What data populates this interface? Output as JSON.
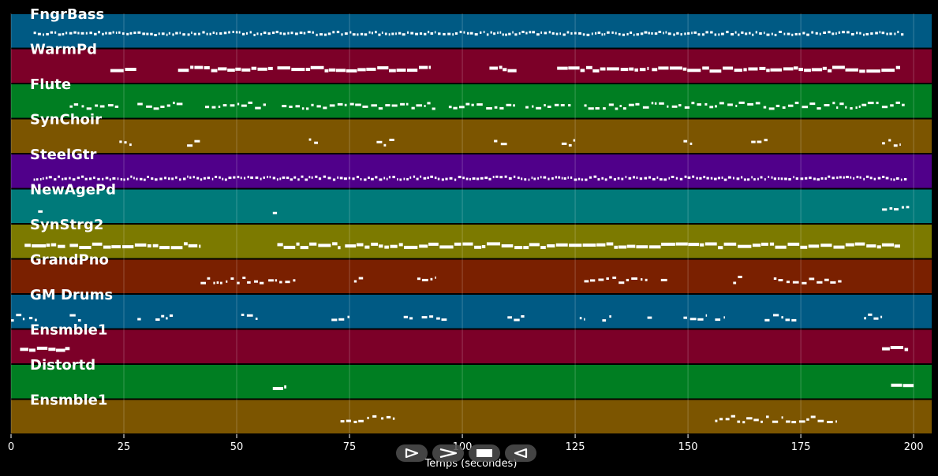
{
  "chart_data": {
    "type": "piano-roll",
    "xlabel": "Temps (secondes)",
    "xlim": [
      0,
      204
    ],
    "xticks": [
      0,
      25,
      50,
      75,
      100,
      125,
      150,
      175,
      200
    ],
    "grid": true,
    "tracks": [
      {
        "name": "FngrBass",
        "color": "#005a84",
        "density": "dense",
        "segments": [
          [
            5,
            198
          ]
        ],
        "pitch": 0.35
      },
      {
        "name": "WarmPd",
        "color": "#7c0028",
        "density": "block",
        "segments": [
          [
            22,
            28
          ],
          [
            37,
            58
          ],
          [
            59,
            93
          ],
          [
            106,
            112
          ],
          [
            121,
            141
          ],
          [
            142,
            197
          ]
        ],
        "pitch": 0.4
      },
      {
        "name": "Flute",
        "color": "#007e22",
        "density": "sparse",
        "segments": [
          [
            13,
            24
          ],
          [
            28,
            38
          ],
          [
            43,
            57
          ],
          [
            60,
            94
          ],
          [
            97,
            112
          ],
          [
            114,
            124
          ],
          [
            127,
            198
          ]
        ],
        "pitch": 0.45
      },
      {
        "name": "SynChoir",
        "color": "#7c5500",
        "density": "sparse",
        "segments": [
          [
            24,
            27
          ],
          [
            39,
            42
          ],
          [
            66,
            68
          ],
          [
            81,
            85
          ],
          [
            107,
            110
          ],
          [
            122,
            125
          ],
          [
            149,
            151
          ],
          [
            164,
            168
          ],
          [
            193,
            197
          ]
        ],
        "pitch": 0.52
      },
      {
        "name": "SteelGtr",
        "color": "#50008a",
        "density": "dense",
        "segments": [
          [
            5,
            198
          ]
        ],
        "pitch": 0.55
      },
      {
        "name": "NewAgePd",
        "color": "#007a7a",
        "density": "sparse",
        "segments": [
          [
            6,
            7
          ],
          [
            58,
            59
          ],
          [
            193,
            199
          ]
        ],
        "pitch": 0.4
      },
      {
        "name": "SynStrg2",
        "color": "#7c7a00",
        "density": "block",
        "segments": [
          [
            3,
            12
          ],
          [
            13,
            42
          ],
          [
            59,
            73
          ],
          [
            74,
            197
          ]
        ],
        "pitch": 0.45
      },
      {
        "name": "GrandPno",
        "color": "#7a2000",
        "density": "sparse",
        "segments": [
          [
            42,
            56
          ],
          [
            57,
            63
          ],
          [
            76,
            78
          ],
          [
            90,
            94
          ],
          [
            127,
            141
          ],
          [
            144,
            146
          ],
          [
            160,
            162
          ],
          [
            169,
            184
          ]
        ],
        "pitch": 0.4
      },
      {
        "name": "GM Drums",
        "color": "#005a84",
        "density": "sparse",
        "segments": [
          [
            0,
            3
          ],
          [
            4,
            6
          ],
          [
            13,
            16
          ],
          [
            28,
            29
          ],
          [
            32,
            36
          ],
          [
            51,
            55
          ],
          [
            71,
            75
          ],
          [
            87,
            89
          ],
          [
            91,
            97
          ],
          [
            110,
            114
          ],
          [
            126,
            127
          ],
          [
            131,
            133
          ],
          [
            141,
            142
          ],
          [
            149,
            154
          ],
          [
            156,
            158
          ],
          [
            167,
            174
          ],
          [
            189,
            193
          ]
        ],
        "pitch": 0.5
      },
      {
        "name": "Ensmble1",
        "color": "#7c0028",
        "density": "block",
        "segments": [
          [
            2,
            12
          ],
          [
            12,
            13
          ],
          [
            193,
            199
          ]
        ],
        "pitch": 0.35
      },
      {
        "name": "Distortd",
        "color": "#007e22",
        "density": "block",
        "segments": [
          [
            58,
            61
          ],
          [
            195,
            200
          ]
        ],
        "pitch": 0.5
      },
      {
        "name": "Ensmble1",
        "color": "#7c5500",
        "density": "sparse",
        "segments": [
          [
            73,
            81
          ],
          [
            82,
            85
          ],
          [
            156,
            183
          ]
        ],
        "pitch": 0.35
      }
    ]
  },
  "controls": [
    {
      "name": "play",
      "icon": "play-icon"
    },
    {
      "name": "fast-forward",
      "icon": "fast-forward-icon"
    },
    {
      "name": "stop",
      "icon": "stop-icon"
    },
    {
      "name": "rewind",
      "icon": "rewind-icon"
    }
  ]
}
